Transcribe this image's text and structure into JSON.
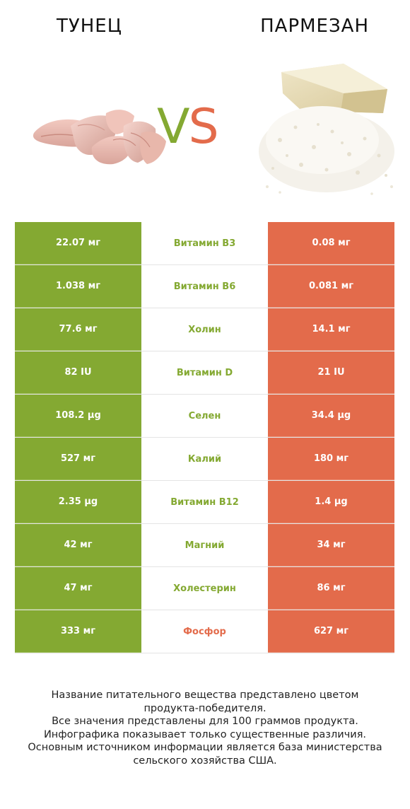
{
  "header": {
    "left_title": "ТУНЕЦ",
    "right_title": "ПАРМЕЗАН",
    "vs_v": "V",
    "vs_s": "S"
  },
  "colors": {
    "left": "#84a932",
    "right": "#e36b4b"
  },
  "images": {
    "left": "tuna-image",
    "right": "parmesan-image"
  },
  "rows": [
    {
      "left": "22.07 мг",
      "name": "Витамин B3",
      "right": "0.08 мг",
      "winner": "left"
    },
    {
      "left": "1.038 мг",
      "name": "Витамин B6",
      "right": "0.081 мг",
      "winner": "left"
    },
    {
      "left": "77.6 мг",
      "name": "Холин",
      "right": "14.1 мг",
      "winner": "left"
    },
    {
      "left": "82 IU",
      "name": "Витамин D",
      "right": "21 IU",
      "winner": "left"
    },
    {
      "left": "108.2 µg",
      "name": "Селен",
      "right": "34.4 µg",
      "winner": "left"
    },
    {
      "left": "527 мг",
      "name": "Калий",
      "right": "180 мг",
      "winner": "left"
    },
    {
      "left": "2.35 µg",
      "name": "Витамин B12",
      "right": "1.4 µg",
      "winner": "left"
    },
    {
      "left": "42 мг",
      "name": "Магний",
      "right": "34 мг",
      "winner": "left"
    },
    {
      "left": "47 мг",
      "name": "Холестерин",
      "right": "86 мг",
      "winner": "left"
    },
    {
      "left": "333 мг",
      "name": "Фосфор",
      "right": "627 мг",
      "winner": "right"
    }
  ],
  "footer": [
    "Название питательного вещества представлено цветом",
    "продукта-победителя.",
    "Все значения представлены для 100 граммов продукта.",
    "Инфографика показывает только существенные различия.",
    "Основным источником информации является база министерства",
    "сельского хозяйства США."
  ]
}
